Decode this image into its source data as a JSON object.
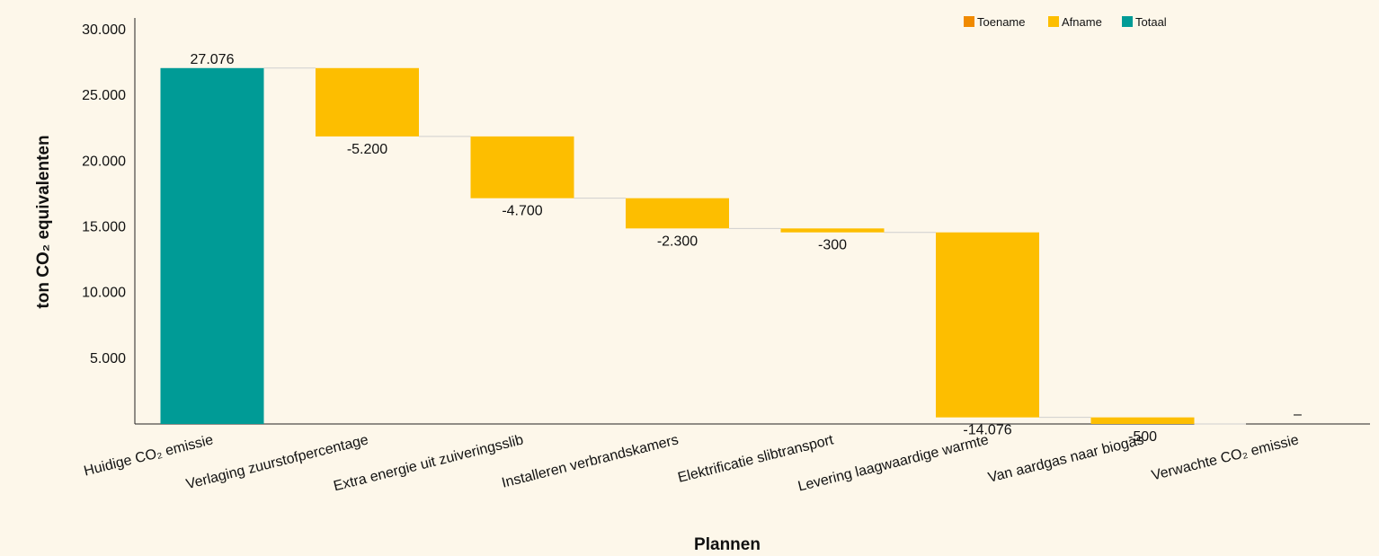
{
  "chart_data": {
    "type": "bar",
    "subtype": "waterfall",
    "title": "",
    "xlabel": "Plannen",
    "ylabel": "ton CO₂ equivalenten",
    "ylim": [
      0,
      30000
    ],
    "yticks": [
      5000,
      10000,
      15000,
      20000,
      25000,
      30000
    ],
    "ytick_labels": [
      "5.000",
      "10.000",
      "15.000",
      "20.000",
      "25.000",
      "30.000"
    ],
    "grid": false,
    "legend_position": "top-right",
    "legend": [
      {
        "label": "Toename",
        "color": "#f08a00"
      },
      {
        "label": "Afname",
        "color": "#fdbe00"
      },
      {
        "label": "Totaal",
        "color": "#009b96"
      }
    ],
    "categories": [
      "Huidige CO₂ emissie",
      "Verlaging zuurstofpercentage",
      "Extra energie uit zuiveringsslib",
      "Installeren verbrandskamers",
      "Elektrificatie slibtransport",
      "Levering laagwaardige warmte",
      "Van aardgas naar biogas",
      "Verwachte CO₂ emissie"
    ],
    "values": [
      27076,
      -5200,
      -4700,
      -2300,
      -300,
      -14076,
      -500,
      0
    ],
    "kinds": [
      "total",
      "decrease",
      "decrease",
      "decrease",
      "decrease",
      "decrease",
      "decrease",
      "total"
    ],
    "data_labels": [
      "27.076",
      "-5.200",
      "-4.700",
      "-2.300",
      "-300",
      "-14.076",
      "-500",
      "–"
    ]
  }
}
